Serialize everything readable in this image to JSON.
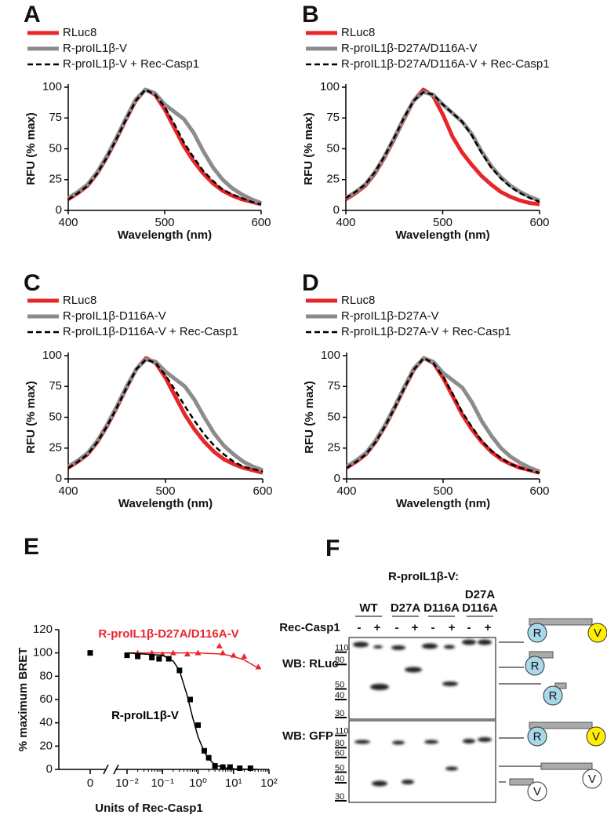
{
  "chart_data": [
    {
      "type": "line",
      "panel": "A",
      "y_label": "RFU (% max)",
      "x_label": "Wavelength (nm)",
      "x": [
        400,
        410,
        420,
        430,
        440,
        450,
        460,
        470,
        480,
        490,
        500,
        510,
        520,
        530,
        540,
        550,
        560,
        570,
        580,
        590,
        600
      ],
      "xlim": [
        400,
        600
      ],
      "xticks": [
        400,
        500,
        600
      ],
      "ylim": [
        0,
        100
      ],
      "yticks": [
        0,
        25,
        50,
        75,
        100
      ],
      "series": [
        {
          "name": "RLuc8",
          "color": "#e8262a",
          "style": "solid",
          "values": [
            9,
            14,
            20,
            30,
            43,
            58,
            74,
            89,
            98,
            94,
            82,
            67,
            52,
            40,
            30,
            22,
            16,
            12,
            9,
            7,
            5
          ]
        },
        {
          "name": "R-proIL1β-V",
          "color": "#8c8c8c",
          "style": "solid",
          "values": [
            10,
            15,
            21,
            31,
            44,
            59,
            75,
            90,
            98,
            95,
            86,
            80,
            74,
            63,
            48,
            35,
            25,
            18,
            13,
            9,
            6
          ]
        },
        {
          "name": "R-proIL1β-V + Rec-Casp1",
          "color": "#000000",
          "style": "dashed",
          "values": [
            9,
            14,
            20,
            30,
            43,
            58,
            74,
            89,
            98,
            94,
            84,
            70,
            55,
            43,
            32,
            24,
            17,
            13,
            10,
            7,
            5
          ]
        }
      ]
    },
    {
      "type": "line",
      "panel": "B",
      "y_label": "RFU (% max)",
      "x_label": "Wavelength (nm)",
      "x": [
        400,
        410,
        420,
        430,
        440,
        450,
        460,
        470,
        480,
        490,
        500,
        510,
        520,
        530,
        540,
        550,
        560,
        570,
        580,
        590,
        600
      ],
      "xlim": [
        400,
        600
      ],
      "xticks": [
        400,
        500,
        600
      ],
      "ylim": [
        0,
        100
      ],
      "yticks": [
        0,
        25,
        50,
        75,
        100
      ],
      "series": [
        {
          "name": "RLuc8",
          "color": "#e8262a",
          "style": "solid",
          "values": [
            9,
            14,
            20,
            30,
            43,
            58,
            74,
            89,
            98,
            93,
            78,
            60,
            47,
            37,
            28,
            21,
            15,
            11,
            8,
            6,
            5
          ]
        },
        {
          "name": "R-proIL1β-D27A/D116A-V",
          "color": "#8c8c8c",
          "style": "solid",
          "values": [
            10,
            15,
            21,
            31,
            44,
            59,
            75,
            89,
            96,
            94,
            86,
            79,
            72,
            62,
            48,
            36,
            27,
            20,
            15,
            11,
            8
          ]
        },
        {
          "name": "R-proIL1β-D27A/D116A-V + Rec-Casp1",
          "color": "#000000",
          "style": "dashed",
          "values": [
            10,
            15,
            21,
            31,
            44,
            59,
            75,
            89,
            96,
            94,
            86,
            79,
            72,
            61,
            47,
            35,
            26,
            19,
            14,
            10,
            7
          ]
        }
      ]
    },
    {
      "type": "line",
      "panel": "C",
      "y_label": "RFU (% max)",
      "x_label": "Wavelength (nm)",
      "x": [
        400,
        410,
        420,
        430,
        440,
        450,
        460,
        470,
        480,
        490,
        500,
        510,
        520,
        530,
        540,
        550,
        560,
        570,
        580,
        590,
        600
      ],
      "xlim": [
        400,
        600
      ],
      "xticks": [
        400,
        500,
        600
      ],
      "ylim": [
        0,
        100
      ],
      "yticks": [
        0,
        25,
        50,
        75,
        100
      ],
      "series": [
        {
          "name": "RLuc8",
          "color": "#e8262a",
          "style": "solid",
          "values": [
            9,
            14,
            20,
            30,
            43,
            58,
            74,
            89,
            98,
            94,
            82,
            67,
            52,
            40,
            30,
            22,
            16,
            12,
            9,
            7,
            5
          ]
        },
        {
          "name": "R-proIL1β-D116A-V",
          "color": "#8c8c8c",
          "style": "solid",
          "values": [
            10,
            15,
            21,
            31,
            44,
            59,
            75,
            89,
            97,
            95,
            87,
            81,
            75,
            64,
            50,
            37,
            27,
            20,
            14,
            10,
            7
          ]
        },
        {
          "name": "R-proIL1β-D116A-V + Rec-Casp1",
          "color": "#000000",
          "style": "dashed",
          "values": [
            9,
            14,
            20,
            30,
            43,
            58,
            74,
            89,
            97,
            94,
            84,
            72,
            59,
            47,
            36,
            27,
            20,
            14,
            10,
            8,
            6
          ]
        }
      ]
    },
    {
      "type": "line",
      "panel": "D",
      "y_label": "RFU (% max)",
      "x_label": "Wavelength (nm)",
      "x": [
        400,
        410,
        420,
        430,
        440,
        450,
        460,
        470,
        480,
        490,
        500,
        510,
        520,
        530,
        540,
        550,
        560,
        570,
        580,
        590,
        600
      ],
      "xlim": [
        400,
        600
      ],
      "xticks": [
        400,
        500,
        600
      ],
      "ylim": [
        0,
        100
      ],
      "yticks": [
        0,
        25,
        50,
        75,
        100
      ],
      "series": [
        {
          "name": "RLuc8",
          "color": "#e8262a",
          "style": "solid",
          "values": [
            9,
            14,
            20,
            30,
            43,
            58,
            74,
            89,
            98,
            94,
            82,
            67,
            52,
            40,
            30,
            22,
            16,
            12,
            9,
            7,
            5
          ]
        },
        {
          "name": "R-proIL1β-D27A-V",
          "color": "#8c8c8c",
          "style": "solid",
          "values": [
            10,
            15,
            21,
            31,
            44,
            59,
            75,
            90,
            98,
            95,
            86,
            80,
            74,
            62,
            47,
            35,
            25,
            18,
            13,
            9,
            6
          ]
        },
        {
          "name": "R-proIL1β-D27A-V + Rec-Casp1",
          "color": "#000000",
          "style": "dashed",
          "values": [
            9,
            14,
            20,
            30,
            43,
            58,
            74,
            89,
            98,
            94,
            83,
            69,
            54,
            42,
            31,
            23,
            17,
            12,
            9,
            7,
            5
          ]
        }
      ]
    },
    {
      "type": "scatter",
      "panel": "E",
      "y_label": "% maximum BRET",
      "x_label": "Units of Rec-Casp1",
      "x_scale": "log",
      "xlim": [
        0.01,
        100
      ],
      "ylim": [
        0,
        120
      ],
      "yticks": [
        0,
        20,
        40,
        60,
        80,
        100,
        120
      ],
      "xticks": [
        0,
        {
          "value": 0.01,
          "label": "10⁻²"
        },
        {
          "value": 0.1,
          "label": "10⁻¹"
        },
        {
          "value": 1,
          "label": "10⁰"
        },
        {
          "value": 10,
          "label": "10¹"
        },
        {
          "value": 100,
          "label": "10²"
        }
      ],
      "series": [
        {
          "name": "R-proIL1β-D27A/D116A-V",
          "color": "#e8262a",
          "marker": "triangle",
          "x": [
            0,
            0.02,
            0.05,
            0.1,
            0.2,
            0.5,
            1,
            4,
            5,
            10,
            20,
            50
          ],
          "values": [
            100,
            100,
            100,
            99,
            100,
            99,
            100,
            106,
            100,
            98,
            97,
            88
          ],
          "fit_x": [
            0.01,
            1,
            5,
            10,
            20,
            50
          ],
          "fit_values": [
            100,
            100,
            99,
            97,
            94,
            87
          ]
        },
        {
          "name": "R-proIL1β-V",
          "color": "#000000",
          "marker": "square",
          "x": [
            0,
            0.01,
            0.02,
            0.05,
            0.08,
            0.15,
            0.3,
            0.6,
            1,
            1.5,
            2,
            3,
            5,
            8,
            15,
            30
          ],
          "values": [
            100,
            98,
            97,
            96,
            95,
            95,
            85,
            60,
            38,
            16,
            10,
            3,
            2,
            2,
            1,
            1
          ],
          "fit_x": [
            0.01,
            0.1,
            0.2,
            0.3,
            0.5,
            0.7,
            1,
            1.5,
            2,
            3,
            5,
            10,
            50
          ],
          "fit_values": [
            100,
            98,
            93,
            85,
            63,
            45,
            28,
            15,
            9,
            4,
            1.5,
            0.5,
            0
          ]
        }
      ]
    }
  ],
  "blot": {
    "panel": "F",
    "title": "R-proIL1β-V:",
    "lane_groups": [
      [
        "WT"
      ],
      [
        "D27A"
      ],
      [
        "D116A"
      ],
      [
        "D27A",
        "D116A"
      ]
    ],
    "treatment_label": "Rec-Casp1",
    "treatment_marks": [
      "-",
      "+",
      "-",
      "+",
      "-",
      "+",
      "-",
      "+"
    ],
    "panels": [
      {
        "label": "WB: RLuc",
        "mw": [
          110,
          80,
          50,
          40,
          30
        ]
      },
      {
        "label": "WB: GFP",
        "mw": [
          110,
          80,
          60,
          50,
          40,
          30
        ]
      }
    ],
    "icon_labels": [
      "R",
      "V"
    ]
  }
}
